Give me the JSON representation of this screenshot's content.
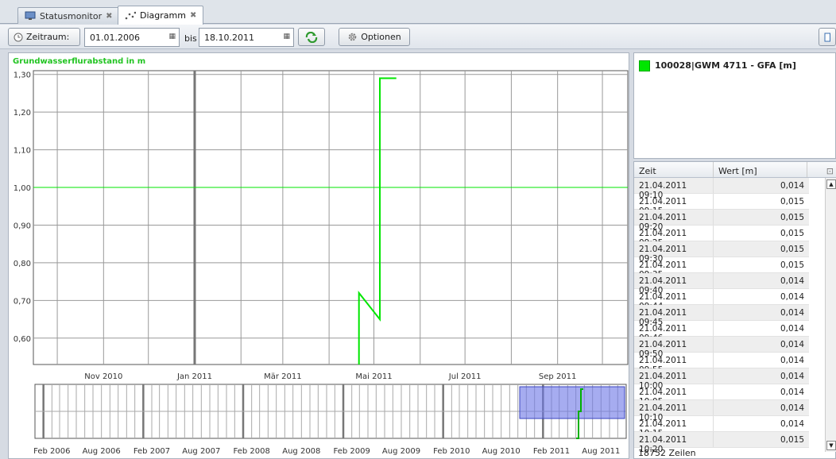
{
  "tabs": [
    {
      "label": "Statusmonitor",
      "icon": "monitor-icon",
      "active": false
    },
    {
      "label": "Diagramm",
      "icon": "chart-icon",
      "active": true
    }
  ],
  "toolbar": {
    "zeitraum_label": "Zeitraum:",
    "from_date": "01.01.2006",
    "bis_label": "bis",
    "to_date": "18.10.2011",
    "refresh_icon": "refresh-icon",
    "options_label": "Optionen"
  },
  "chart_data": [
    {
      "type": "line",
      "title": "",
      "ylabel": "Grundwasserflurabstand in m",
      "y_ticks": [
        "1,30",
        "1,20",
        "1,10",
        "1,00",
        "0,90",
        "0,80",
        "0,70",
        "0,60"
      ],
      "ylim": [
        0.53,
        1.31
      ],
      "x_ticks": [
        "Nov 2010",
        "Jan 2011",
        "Mär 2011",
        "Mai 2011",
        "Jul 2011",
        "Sep 2011"
      ],
      "reference_line": 1.0,
      "series": [
        {
          "color": "#00e600",
          "x": [
            "2011-04-21",
            "2011-04-21",
            "2011-05-05",
            "2011-05-05",
            "2011-05-16"
          ],
          "y": [
            0.53,
            0.72,
            0.65,
            1.29,
            1.29
          ]
        }
      ]
    },
    {
      "type": "line",
      "title": "",
      "x_ticks": [
        "Feb 2006",
        "Aug 2006",
        "Feb 2007",
        "Aug 2007",
        "Feb 2008",
        "Aug 2008",
        "Feb 2009",
        "Aug 2009",
        "Feb 2010",
        "Aug 2010",
        "Feb 2011",
        "Aug 2011"
      ],
      "selection_range": [
        "Sep 2010",
        "Okt 2011"
      ],
      "series": [
        {
          "color": "#00b000"
        }
      ]
    }
  ],
  "legend": {
    "label": "100028|GWM 4711 - GFA [m]",
    "color": "#00e600"
  },
  "table": {
    "columns": [
      "Zeit",
      "Wert [m]"
    ],
    "rows": [
      [
        "21.04.2011 09:10",
        "0,014"
      ],
      [
        "21.04.2011 09:15",
        "0,015"
      ],
      [
        "21.04.2011 09:20",
        "0,015"
      ],
      [
        "21.04.2011 09:25",
        "0,015"
      ],
      [
        "21.04.2011 09:30",
        "0,015"
      ],
      [
        "21.04.2011 09:35",
        "0,015"
      ],
      [
        "21.04.2011 09:40",
        "0,014"
      ],
      [
        "21.04.2011 09:44",
        "0,014"
      ],
      [
        "21.04.2011 09:45",
        "0,014"
      ],
      [
        "21.04.2011 09:46",
        "0,014"
      ],
      [
        "21.04.2011 09:50",
        "0,014"
      ],
      [
        "21.04.2011 09:55",
        "0,014"
      ],
      [
        "21.04.2011 10:00",
        "0,014"
      ],
      [
        "21.04.2011 10:05",
        "0,014"
      ],
      [
        "21.04.2011 10:10",
        "0,014"
      ],
      [
        "21.04.2011 10:15",
        "0,014"
      ],
      [
        "21.04.2011 10:20",
        "0,015"
      ]
    ],
    "row_count": "18752 Zeilen"
  }
}
